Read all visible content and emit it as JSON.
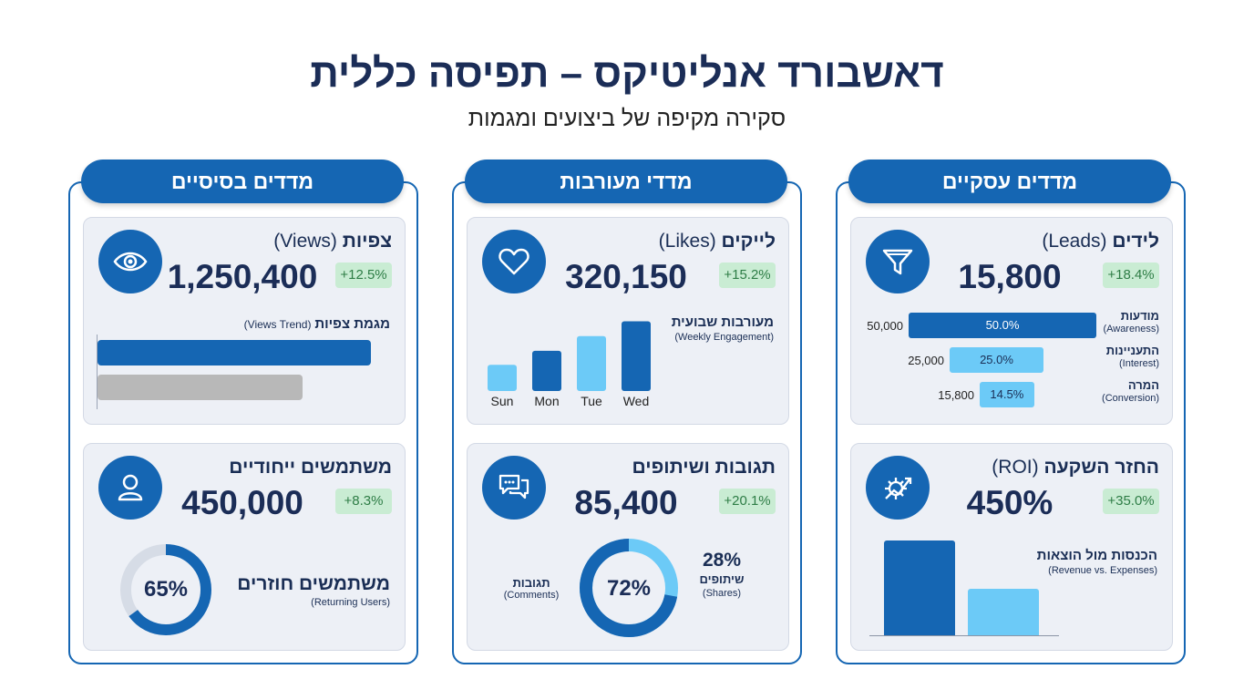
{
  "header": {
    "title": "דאשבורד אנליטיקס – תפיסה כללית",
    "subtitle": "סקירה מקיפה של ביצועים ומגמות"
  },
  "columns": {
    "basic": {
      "title": "מדדים בסיסיים",
      "views": {
        "title_he": "צפיות",
        "title_en": "(Views)",
        "value": "1,250,400",
        "change": "+12.5%",
        "icon": "eye-icon"
      },
      "views_trend": {
        "label_he": "מגמת צפיות",
        "label_en": "(Views Trend)",
        "bars": [
          1.0,
          0.75
        ],
        "colors": [
          "#1566b3",
          "#b8b8b8"
        ]
      },
      "unique_users": {
        "title": "משתמשים ייחודיים",
        "value": "450,000",
        "change": "+8.3%",
        "icon": "user-icon"
      },
      "returning": {
        "label_he": "משתמשים חוזרים",
        "label_en": "(Returning Users)",
        "percent_label": "65%",
        "percent": 65
      }
    },
    "engagement": {
      "title": "מדדי מעורבות",
      "likes": {
        "title_he": "לייקים",
        "title_en": "(Likes)",
        "value": "320,150",
        "change": "+15.2%",
        "icon": "heart-icon"
      },
      "weekly": {
        "label_he": "מעורבות שבועית",
        "label_en": "(Weekly Engagement)"
      },
      "comments_shares": {
        "title": "תגובות ושיתופים",
        "value": "85,400",
        "change": "+20.1%",
        "icon": "chat-bubbles-icon"
      },
      "split": {
        "comments_percent_label": "72%",
        "comments_percent": 72,
        "comments_label_he": "תגובות",
        "comments_label_en": "(Comments)",
        "shares_percent_label": "28%",
        "shares_label_he": "שיתופים",
        "shares_label_en": "(Shares)"
      }
    },
    "business": {
      "title": "מדדים עסקיים",
      "leads": {
        "title_he": "לידים",
        "title_en": "(Leads)",
        "value": "15,800",
        "change": "+18.4%",
        "icon": "funnel-icon"
      },
      "funnel": [
        {
          "name_he": "מודעות",
          "name_en": "(Awareness)",
          "value": "50,000",
          "percent": "50.0%",
          "fraction": 1.0,
          "color": "#1566b3"
        },
        {
          "name_he": "התעניינות",
          "name_en": "(Interest)",
          "value": "25,000",
          "percent": "25.0%",
          "fraction": 0.5,
          "color": "#6ccaf7"
        },
        {
          "name_he": "המרה",
          "name_en": "(Conversion)",
          "value": "15,800",
          "percent": "14.5%",
          "fraction": 0.29,
          "color": "#6ccaf7"
        }
      ],
      "roi": {
        "title_he": "החזר השקעה",
        "title_en": "(ROI)",
        "value": "450%",
        "change": "+35.0%",
        "icon": "gear-growth-icon"
      },
      "rev_exp": {
        "label_he": "הכנסות מול הוצאות",
        "label_en": "(Revenue vs. Expenses)",
        "values": [
          1.0,
          0.49
        ],
        "colors": [
          "#1566b3",
          "#6ccaf7"
        ]
      }
    }
  },
  "chart_data": [
    {
      "type": "bar",
      "categories": [
        "Sun",
        "Mon",
        "Tue",
        "Wed"
      ],
      "values": [
        32,
        49,
        67,
        85
      ],
      "colors": [
        "#6ccaf7",
        "#1566b3",
        "#6ccaf7",
        "#1566b3"
      ],
      "title": "מעורבות שבועית (Weekly Engagement)",
      "ylim": [
        0,
        100
      ]
    }
  ]
}
